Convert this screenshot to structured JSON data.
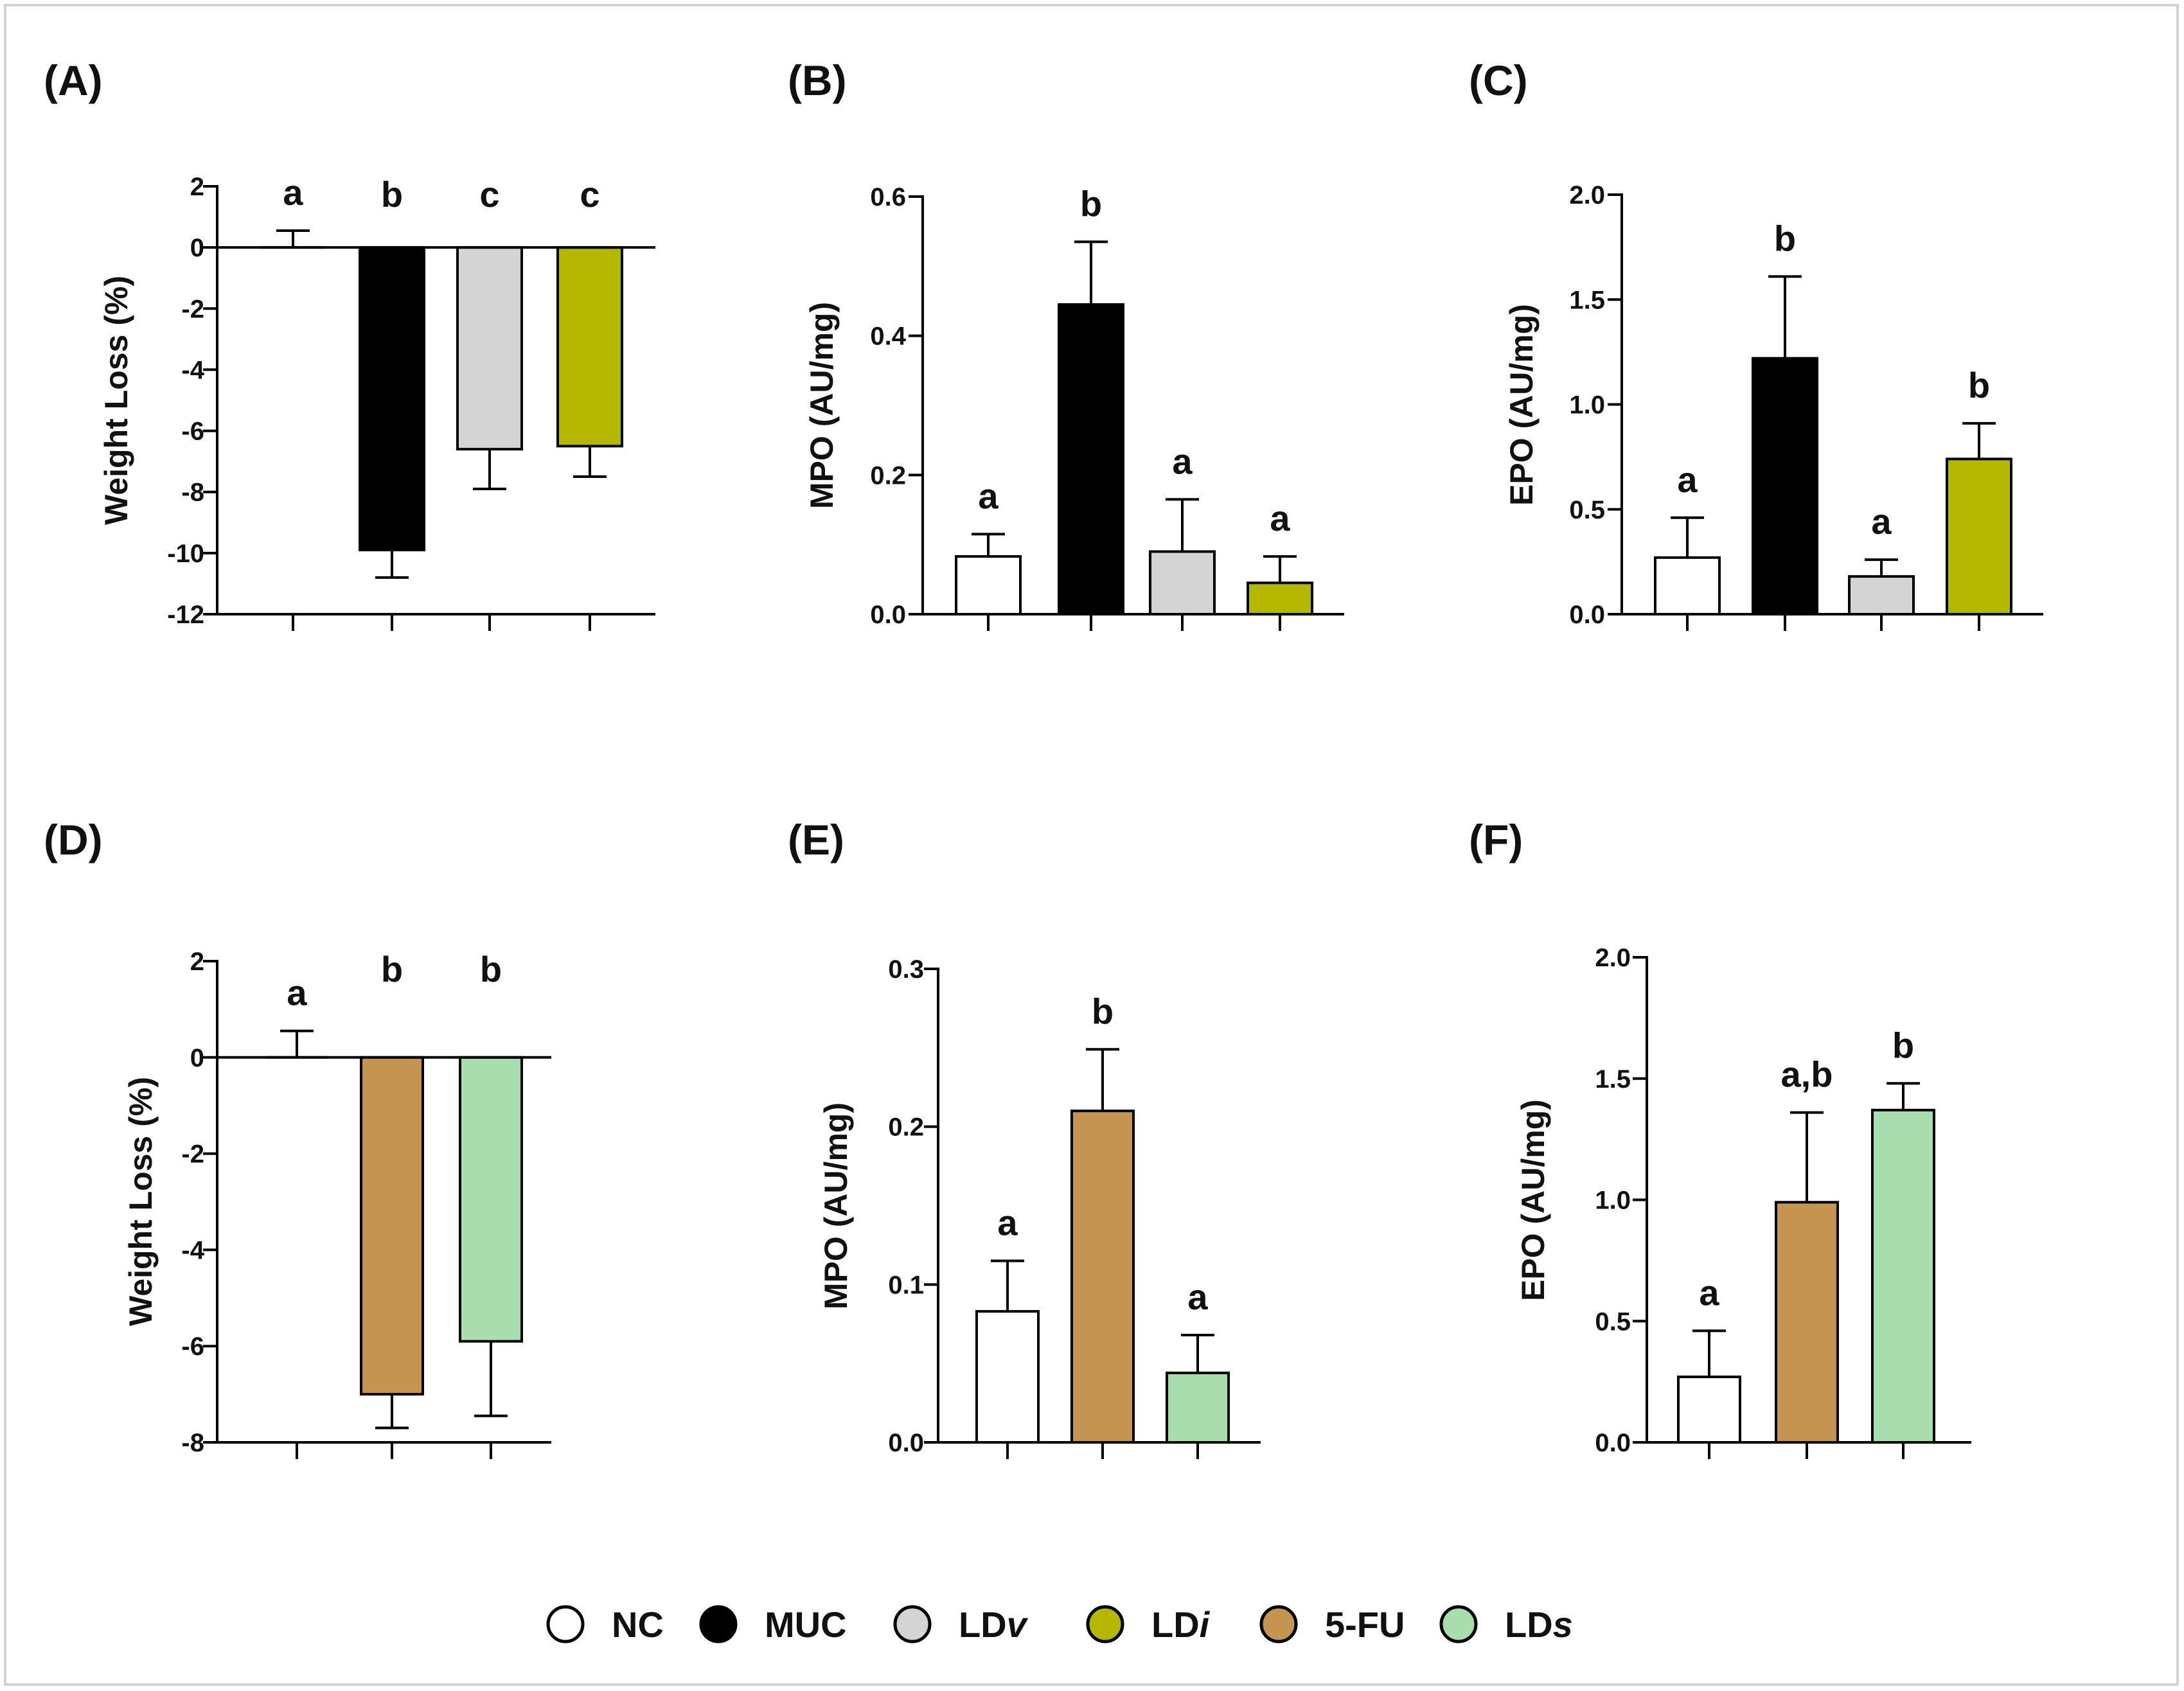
{
  "groups": {
    "NC": {
      "label": "NC",
      "color": "#ffffff"
    },
    "MUC": {
      "label": "MUC",
      "color": "#000000"
    },
    "LDv": {
      "label": "LD",
      "suffix": "v",
      "color": "#d4d4d4"
    },
    "LDi": {
      "label": "LD",
      "suffix": "i",
      "color": "#b5b800"
    },
    "5FU": {
      "label": "5-FU",
      "color": "#c49450"
    },
    "LDs": {
      "label": "LD",
      "suffix": "s",
      "color": "#a8deae"
    }
  },
  "legend_order": [
    "NC",
    "MUC",
    "LDv",
    "LDi",
    "5FU",
    "LDs"
  ],
  "chart_data": [
    {
      "panel": "(A)",
      "type": "bar",
      "ylabel": "Weight Loss (%)",
      "ylim": [
        -12,
        2
      ],
      "yticks": [
        2,
        0,
        -2,
        -4,
        -6,
        -8,
        -10,
        -12
      ],
      "tick_format": "int",
      "groups": [
        "NC",
        "MUC",
        "LDv",
        "LDi"
      ],
      "values": [
        0,
        -9.9,
        -6.6,
        -6.5
      ],
      "errors": [
        0.55,
        0.9,
        1.3,
        1.0
      ],
      "significance": [
        "a",
        "b",
        "c",
        "c"
      ]
    },
    {
      "panel": "(B)",
      "type": "bar",
      "ylabel": "MPO (AU/mg)",
      "ylim": [
        0,
        0.6
      ],
      "yticks": [
        0.0,
        0.2,
        0.4,
        0.6
      ],
      "tick_format": "1",
      "groups": [
        "NC",
        "MUC",
        "LDv",
        "LDi"
      ],
      "values": [
        0.083,
        0.445,
        0.09,
        0.045
      ],
      "errors": [
        0.032,
        0.09,
        0.075,
        0.038
      ],
      "significance": [
        "a",
        "b",
        "a",
        "a"
      ]
    },
    {
      "panel": "(C)",
      "type": "bar",
      "ylabel": "EPO (AU/mg)",
      "ylim": [
        0,
        2.0
      ],
      "yticks": [
        0.0,
        0.5,
        1.0,
        1.5,
        2.0
      ],
      "tick_format": "1",
      "groups": [
        "NC",
        "MUC",
        "LDv",
        "LDi"
      ],
      "values": [
        0.27,
        1.22,
        0.18,
        0.74
      ],
      "errors": [
        0.19,
        0.39,
        0.08,
        0.17
      ],
      "significance": [
        "a",
        "b",
        "a",
        "b"
      ]
    },
    {
      "panel": "(D)",
      "type": "bar",
      "ylabel": "Weight Loss (%)",
      "ylim": [
        -8,
        2
      ],
      "yticks": [
        2,
        0,
        -2,
        -4,
        -6,
        -8
      ],
      "tick_format": "int",
      "groups": [
        "NC",
        "5FU",
        "LDs"
      ],
      "values": [
        0,
        -7.0,
        -5.9
      ],
      "errors": [
        0.55,
        0.7,
        1.55
      ],
      "significance": [
        "a",
        "b",
        "b"
      ]
    },
    {
      "panel": "(E)",
      "type": "bar",
      "ylabel": "MPO (AU/mg)",
      "ylim": [
        0,
        0.3
      ],
      "yticks": [
        0.0,
        0.1,
        0.2,
        0.3
      ],
      "tick_format": "1",
      "groups": [
        "NC",
        "5FU",
        "LDs"
      ],
      "values": [
        0.083,
        0.21,
        0.044
      ],
      "errors": [
        0.032,
        0.039,
        0.024
      ],
      "significance": [
        "a",
        "b",
        "a"
      ]
    },
    {
      "panel": "(F)",
      "type": "bar",
      "ylabel": "EPO (AU/mg)",
      "ylim": [
        0,
        2.0
      ],
      "yticks": [
        0.0,
        0.5,
        1.0,
        1.5,
        2.0
      ],
      "tick_format": "1",
      "groups": [
        "NC",
        "5FU",
        "LDs"
      ],
      "values": [
        0.27,
        0.99,
        1.37
      ],
      "errors": [
        0.19,
        0.37,
        0.11
      ],
      "significance": [
        "a",
        "a,b",
        "b"
      ]
    }
  ]
}
